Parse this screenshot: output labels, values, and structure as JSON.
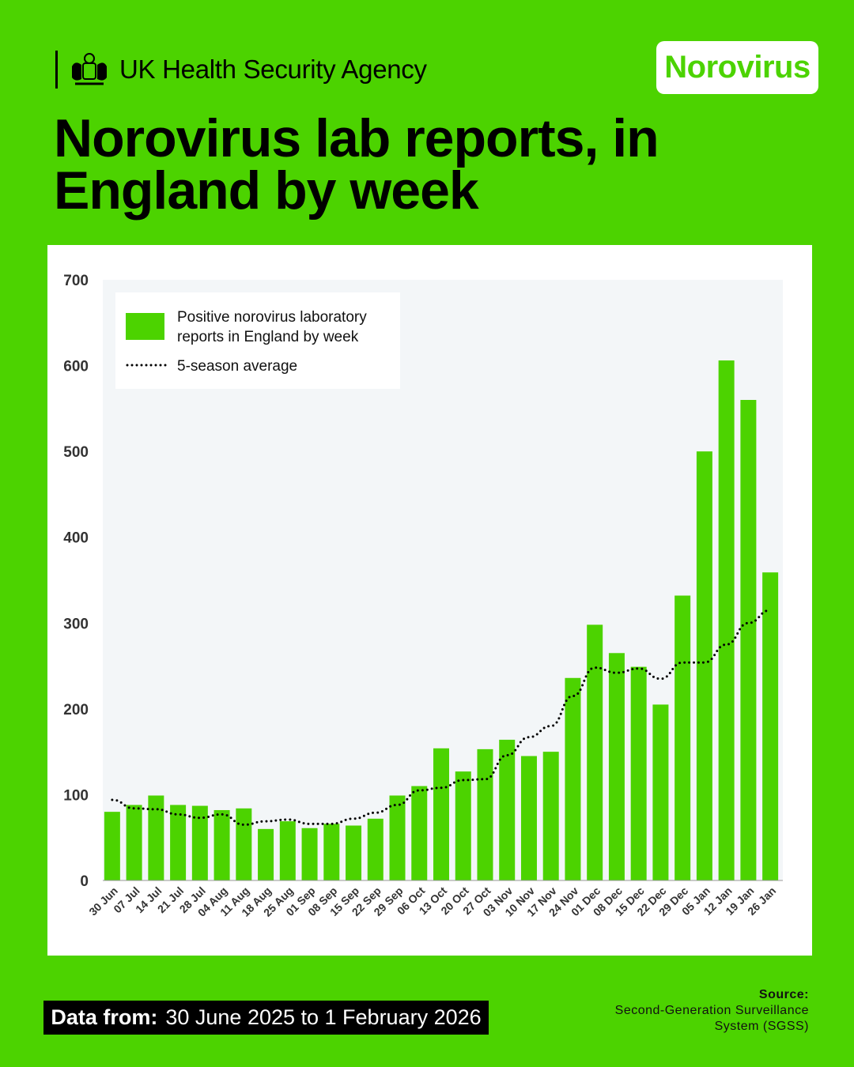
{
  "header": {
    "org_name": "UK Health Security Agency",
    "badge": "Norovirus",
    "title": "Norovirus lab reports, in England by week"
  },
  "footer": {
    "data_from_label": "Data from:",
    "data_from_value": "30 June 2025 to 1 February 2026",
    "source_label": "Source:",
    "source_line1": "Second-Generation Surveillance",
    "source_line2": "System (SGSS)"
  },
  "colors": {
    "bar": "#4cd300",
    "background": "#4cd300",
    "plot_bg": "#f3f6f8"
  },
  "chart_data": {
    "type": "bar",
    "title": "Norovirus lab reports, in England by week",
    "xlabel": "",
    "ylabel": "",
    "ylim": [
      0,
      700
    ],
    "yticks": [
      0,
      100,
      200,
      300,
      400,
      500,
      600,
      700
    ],
    "legend_position": "top-left",
    "categories": [
      "30 Jun",
      "07 Jul",
      "14 Jul",
      "21 Jul",
      "28 Jul",
      "04 Aug",
      "11 Aug",
      "18 Aug",
      "25 Aug",
      "01 Sep",
      "08 Sep",
      "15 Sep",
      "22 Sep",
      "29 Sep",
      "06 Oct",
      "13 Oct",
      "20 Oct",
      "27 Oct",
      "03 Nov",
      "10 Nov",
      "17 Nov",
      "24 Nov",
      "01 Dec",
      "08 Dec",
      "15 Dec",
      "22 Dec",
      "29 Dec",
      "05 Jan",
      "12 Jan",
      "19 Jan",
      "26 Jan"
    ],
    "series": [
      {
        "name": "Positive norovirus laboratory reports in England by week",
        "type": "bar",
        "values": [
          80,
          88,
          99,
          88,
          87,
          82,
          84,
          60,
          69,
          61,
          66,
          64,
          72,
          99,
          110,
          154,
          127,
          153,
          164,
          145,
          150,
          236,
          298,
          265,
          249,
          205,
          332,
          500,
          606,
          560,
          359
        ]
      },
      {
        "name": "5-season average",
        "type": "line",
        "style": "dotted",
        "values": [
          94,
          84,
          83,
          77,
          73,
          77,
          65,
          69,
          71,
          66,
          66,
          72,
          79,
          88,
          105,
          108,
          117,
          118,
          146,
          167,
          180,
          215,
          248,
          242,
          247,
          235,
          254,
          254,
          275,
          300,
          315
        ]
      }
    ],
    "legend": [
      "Positive norovirus laboratory",
      "reports in England by week",
      "5-season average"
    ]
  }
}
